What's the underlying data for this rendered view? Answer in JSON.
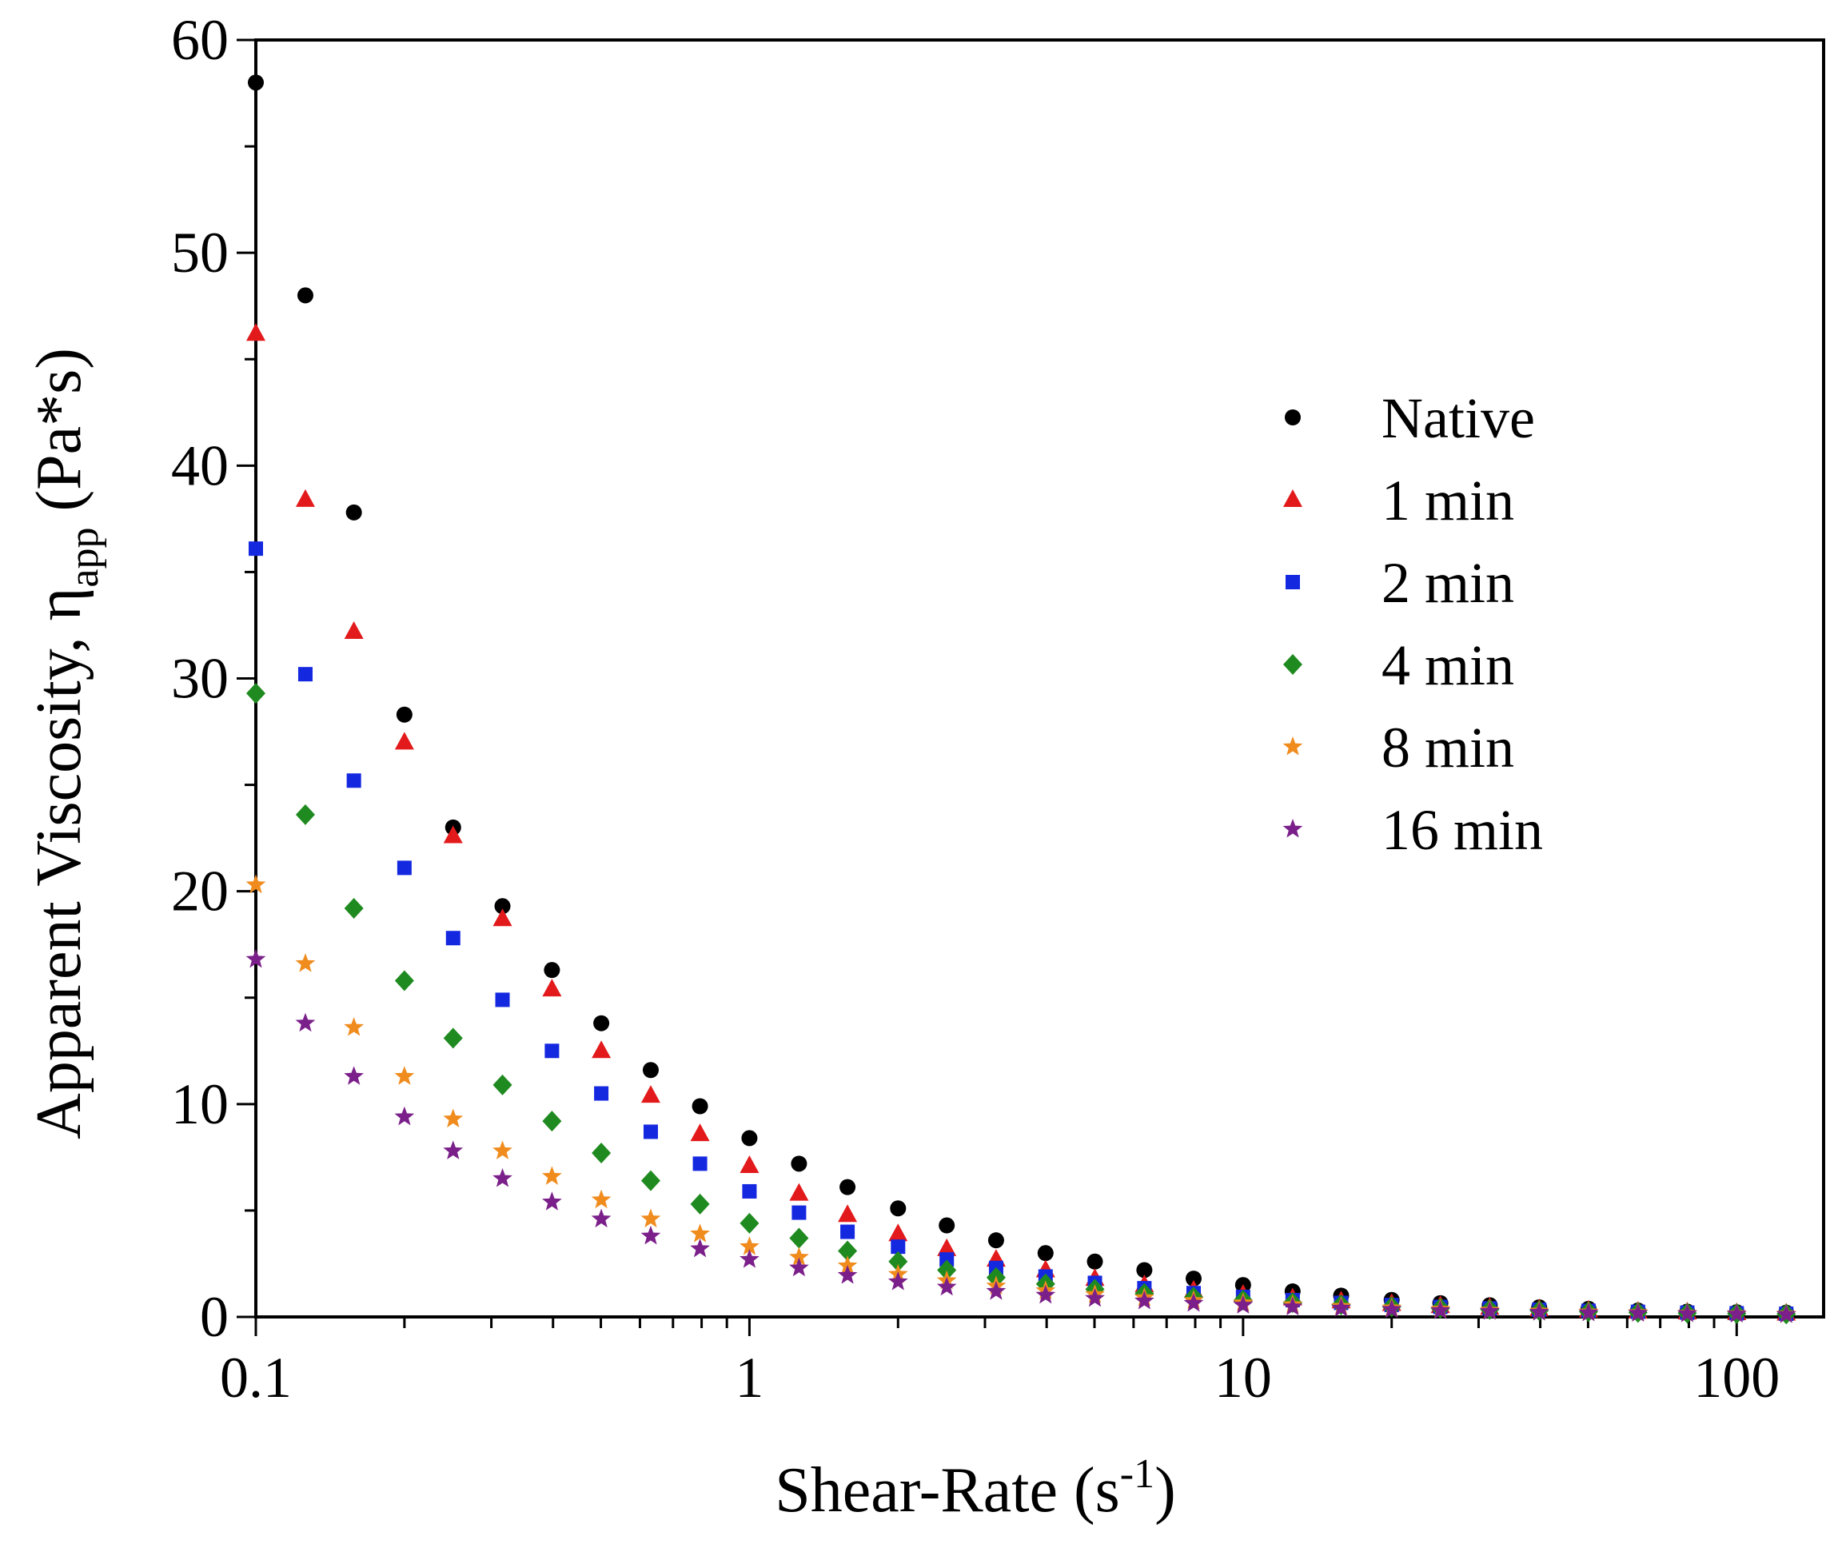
{
  "chart_data": {
    "type": "scatter",
    "x_scale": "log",
    "xlabel": {
      "main": "Shear-Rate (s",
      "sup": "-1",
      "close": ")"
    },
    "ylabel": {
      "main": "Apparent Viscosity, η",
      "sub": "app",
      "tail": " (Pa*s)"
    },
    "xlim": [
      0.1,
      150
    ],
    "ylim": [
      0,
      60
    ],
    "xticks": [
      {
        "value": 0.1,
        "label": "0.1"
      },
      {
        "value": 1,
        "label": "1"
      },
      {
        "value": 10,
        "label": "10"
      },
      {
        "value": 100,
        "label": "100"
      }
    ],
    "yticks": [
      {
        "value": 0,
        "label": "0"
      },
      {
        "value": 10,
        "label": "10"
      },
      {
        "value": 20,
        "label": "20"
      },
      {
        "value": 30,
        "label": "30"
      },
      {
        "value": 40,
        "label": "40"
      },
      {
        "value": 50,
        "label": "50"
      },
      {
        "value": 60,
        "label": "60"
      }
    ],
    "legend_position": "right-middle",
    "x": [
      0.1,
      0.126,
      0.158,
      0.2,
      0.251,
      0.316,
      0.398,
      0.501,
      0.631,
      0.794,
      1.0,
      1.26,
      1.58,
      2.0,
      2.51,
      3.16,
      3.98,
      5.01,
      6.31,
      7.94,
      10.0,
      12.6,
      15.8,
      20.0,
      25.1,
      31.6,
      39.8,
      50.1,
      63.1,
      79.4,
      100,
      126
    ],
    "series": [
      {
        "name": "Native",
        "marker": "circle",
        "color": "#000000",
        "values": [
          58.0,
          48.0,
          37.8,
          28.3,
          23.0,
          19.3,
          16.3,
          13.8,
          11.6,
          9.9,
          8.4,
          7.2,
          6.1,
          5.1,
          4.3,
          3.6,
          3.0,
          2.6,
          2.2,
          1.8,
          1.5,
          1.2,
          1.0,
          0.8,
          0.65,
          0.55,
          0.45,
          0.38,
          0.3,
          0.25,
          0.22,
          0.2
        ]
      },
      {
        "name": "1 min",
        "marker": "triangle",
        "color": "#e31a1c",
        "values": [
          46.2,
          38.4,
          32.2,
          27.0,
          22.6,
          18.7,
          15.4,
          12.5,
          10.4,
          8.6,
          7.1,
          5.8,
          4.8,
          3.9,
          3.2,
          2.7,
          2.2,
          1.8,
          1.5,
          1.25,
          1.05,
          0.88,
          0.74,
          0.62,
          0.52,
          0.44,
          0.37,
          0.31,
          0.26,
          0.22,
          0.19,
          0.17
        ]
      },
      {
        "name": "2 min",
        "marker": "square",
        "color": "#1428e0",
        "values": [
          36.1,
          30.2,
          25.2,
          21.1,
          17.8,
          14.9,
          12.5,
          10.5,
          8.7,
          7.2,
          5.9,
          4.9,
          4.0,
          3.3,
          2.7,
          2.3,
          1.9,
          1.6,
          1.35,
          1.12,
          0.94,
          0.79,
          0.66,
          0.56,
          0.47,
          0.4,
          0.34,
          0.29,
          0.24,
          0.2,
          0.17,
          0.15
        ]
      },
      {
        "name": "4 min",
        "marker": "diamond",
        "color": "#1f8a1f",
        "values": [
          29.3,
          23.6,
          19.2,
          15.8,
          13.1,
          10.9,
          9.2,
          7.7,
          6.4,
          5.3,
          4.4,
          3.7,
          3.1,
          2.6,
          2.2,
          1.85,
          1.55,
          1.3,
          1.1,
          0.93,
          0.79,
          0.67,
          0.57,
          0.48,
          0.41,
          0.35,
          0.3,
          0.25,
          0.21,
          0.18,
          0.16,
          0.14
        ]
      },
      {
        "name": "8 min",
        "marker": "star",
        "color": "#f08c1e",
        "values": [
          20.3,
          16.6,
          13.6,
          11.3,
          9.3,
          7.8,
          6.6,
          5.5,
          4.6,
          3.9,
          3.3,
          2.8,
          2.4,
          2.0,
          1.7,
          1.45,
          1.23,
          1.05,
          0.9,
          0.77,
          0.66,
          0.57,
          0.49,
          0.42,
          0.36,
          0.31,
          0.27,
          0.23,
          0.2,
          0.17,
          0.15,
          0.13
        ]
      },
      {
        "name": "16 min",
        "marker": "star",
        "color": "#7b1f8a",
        "values": [
          16.8,
          13.8,
          11.3,
          9.4,
          7.8,
          6.5,
          5.4,
          4.6,
          3.8,
          3.2,
          2.7,
          2.3,
          1.95,
          1.65,
          1.4,
          1.2,
          1.02,
          0.87,
          0.75,
          0.64,
          0.55,
          0.47,
          0.41,
          0.35,
          0.3,
          0.26,
          0.22,
          0.19,
          0.17,
          0.15,
          0.13,
          0.11
        ]
      }
    ]
  }
}
